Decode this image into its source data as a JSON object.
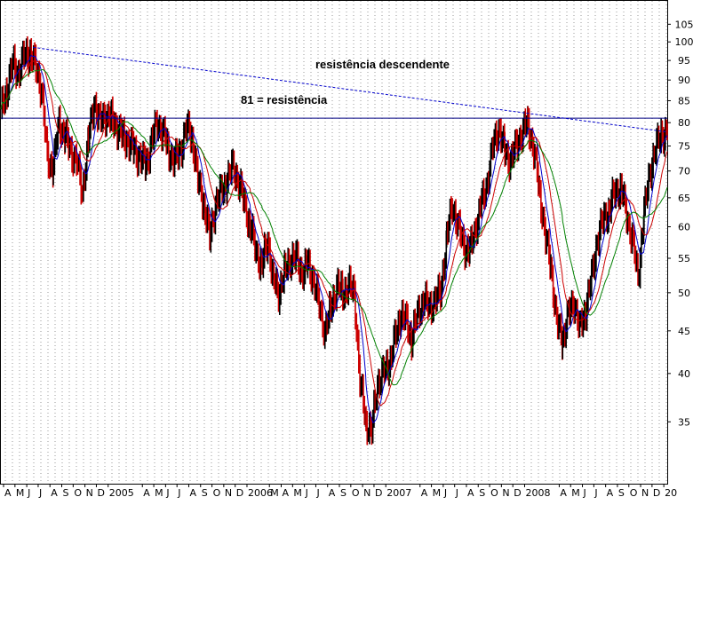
{
  "chart_data": {
    "type": "candlestick",
    "title": "",
    "xlabel": "",
    "ylabel": "",
    "y_scale": "log",
    "ylim": [
      29.5,
      112
    ],
    "y_ticks": [
      35,
      40,
      45,
      50,
      55,
      60,
      65,
      70,
      75,
      80,
      85,
      90,
      95,
      100,
      105
    ],
    "x_range": [
      "2004-03-25",
      "2009-01-10"
    ],
    "x_ticks": [
      {
        "label": "A",
        "date": "2004-04-01"
      },
      {
        "label": "M",
        "date": "2004-05-01"
      },
      {
        "label": "J",
        "date": "2004-06-01"
      },
      {
        "label": "J",
        "date": "2004-07-01"
      },
      {
        "label": "A",
        "date": "2004-08-01"
      },
      {
        "label": "S",
        "date": "2004-09-01"
      },
      {
        "label": "O",
        "date": "2004-10-01"
      },
      {
        "label": "N",
        "date": "2004-11-01"
      },
      {
        "label": "D",
        "date": "2004-12-01"
      },
      {
        "label": "2005",
        "date": "2005-01-01"
      },
      {
        "label": "A",
        "date": "2005-04-01"
      },
      {
        "label": "M",
        "date": "2005-05-01"
      },
      {
        "label": "J",
        "date": "2005-06-01"
      },
      {
        "label": "J",
        "date": "2005-07-01"
      },
      {
        "label": "A",
        "date": "2005-08-01"
      },
      {
        "label": "S",
        "date": "2005-09-01"
      },
      {
        "label": "O",
        "date": "2005-10-01"
      },
      {
        "label": "N",
        "date": "2005-11-01"
      },
      {
        "label": "D",
        "date": "2005-12-01"
      },
      {
        "label": "2006",
        "date": "2006-01-01"
      },
      {
        "label": "M",
        "date": "2006-03-01"
      },
      {
        "label": "A",
        "date": "2006-04-01"
      },
      {
        "label": "M",
        "date": "2006-05-01"
      },
      {
        "label": "J",
        "date": "2006-06-01"
      },
      {
        "label": "J",
        "date": "2006-07-01"
      },
      {
        "label": "A",
        "date": "2006-08-01"
      },
      {
        "label": "S",
        "date": "2006-09-01"
      },
      {
        "label": "O",
        "date": "2006-10-01"
      },
      {
        "label": "N",
        "date": "2006-11-01"
      },
      {
        "label": "D",
        "date": "2006-12-01"
      },
      {
        "label": "2007",
        "date": "2007-01-01"
      },
      {
        "label": "A",
        "date": "2007-04-01"
      },
      {
        "label": "M",
        "date": "2007-05-01"
      },
      {
        "label": "J",
        "date": "2007-06-01"
      },
      {
        "label": "J",
        "date": "2007-07-01"
      },
      {
        "label": "A",
        "date": "2007-08-01"
      },
      {
        "label": "S",
        "date": "2007-09-01"
      },
      {
        "label": "O",
        "date": "2007-10-01"
      },
      {
        "label": "N",
        "date": "2007-11-01"
      },
      {
        "label": "D",
        "date": "2007-12-01"
      },
      {
        "label": "2008",
        "date": "2008-01-01"
      },
      {
        "label": "A",
        "date": "2008-04-01"
      },
      {
        "label": "M",
        "date": "2008-05-01"
      },
      {
        "label": "J",
        "date": "2008-06-01"
      },
      {
        "label": "J",
        "date": "2008-07-01"
      },
      {
        "label": "A",
        "date": "2008-08-01"
      },
      {
        "label": "S",
        "date": "2008-09-01"
      },
      {
        "label": "O",
        "date": "2008-10-01"
      },
      {
        "label": "N",
        "date": "2008-11-01"
      },
      {
        "label": "D",
        "date": "2008-12-01"
      },
      {
        "label": "20",
        "date": "2009-01-01"
      }
    ],
    "price_path": [
      [
        "2004-03-25",
        82
      ],
      [
        "2004-04-10",
        88
      ],
      [
        "2004-04-25",
        94
      ],
      [
        "2004-05-10",
        92
      ],
      [
        "2004-05-25",
        96
      ],
      [
        "2004-06-10",
        97
      ],
      [
        "2004-06-25",
        93
      ],
      [
        "2004-07-10",
        88
      ],
      [
        "2004-07-25",
        72
      ],
      [
        "2004-08-10",
        71
      ],
      [
        "2004-08-25",
        80
      ],
      [
        "2004-09-10",
        77
      ],
      [
        "2004-09-25",
        74
      ],
      [
        "2004-10-10",
        72
      ],
      [
        "2004-10-25",
        66
      ],
      [
        "2004-11-10",
        76
      ],
      [
        "2004-11-25",
        85
      ],
      [
        "2004-12-10",
        80
      ],
      [
        "2004-12-25",
        82
      ],
      [
        "2005-01-10",
        81
      ],
      [
        "2005-01-25",
        79
      ],
      [
        "2005-02-10",
        77
      ],
      [
        "2005-02-25",
        76
      ],
      [
        "2005-03-10",
        74
      ],
      [
        "2005-03-25",
        73
      ],
      [
        "2005-04-10",
        71
      ],
      [
        "2005-04-25",
        76
      ],
      [
        "2005-05-10",
        80
      ],
      [
        "2005-05-25",
        78
      ],
      [
        "2005-06-10",
        74
      ],
      [
        "2005-06-25",
        72
      ],
      [
        "2005-07-10",
        74
      ],
      [
        "2005-07-25",
        79
      ],
      [
        "2005-08-10",
        77
      ],
      [
        "2005-08-25",
        68
      ],
      [
        "2005-09-10",
        64
      ],
      [
        "2005-09-25",
        58
      ],
      [
        "2005-10-10",
        64
      ],
      [
        "2005-10-25",
        66
      ],
      [
        "2005-11-10",
        68
      ],
      [
        "2005-11-25",
        71
      ],
      [
        "2005-12-10",
        68
      ],
      [
        "2005-12-25",
        64
      ],
      [
        "2006-01-10",
        60
      ],
      [
        "2006-01-25",
        56
      ],
      [
        "2006-02-10",
        54
      ],
      [
        "2006-02-25",
        58
      ],
      [
        "2006-03-10",
        52
      ],
      [
        "2006-03-25",
        50
      ],
      [
        "2006-04-10",
        53
      ],
      [
        "2006-04-25",
        55
      ],
      [
        "2006-05-10",
        55
      ],
      [
        "2006-05-25",
        53
      ],
      [
        "2006-06-10",
        54
      ],
      [
        "2006-06-25",
        52
      ],
      [
        "2006-07-10",
        48
      ],
      [
        "2006-07-25",
        45
      ],
      [
        "2006-08-10",
        48
      ],
      [
        "2006-08-25",
        51
      ],
      [
        "2006-09-10",
        50
      ],
      [
        "2006-09-25",
        51
      ],
      [
        "2006-10-10",
        50
      ],
      [
        "2006-10-25",
        39
      ],
      [
        "2006-11-10",
        35
      ],
      [
        "2006-11-25",
        34
      ],
      [
        "2006-12-10",
        39
      ],
      [
        "2006-12-25",
        40
      ],
      [
        "2007-01-10",
        41
      ],
      [
        "2007-01-25",
        44
      ],
      [
        "2007-02-10",
        47
      ],
      [
        "2007-02-25",
        46
      ],
      [
        "2007-03-10",
        44
      ],
      [
        "2007-03-25",
        47
      ],
      [
        "2007-04-10",
        49
      ],
      [
        "2007-04-25",
        48
      ],
      [
        "2007-05-10",
        49
      ],
      [
        "2007-05-25",
        50
      ],
      [
        "2007-06-10",
        58
      ],
      [
        "2007-06-25",
        64
      ],
      [
        "2007-07-10",
        60
      ],
      [
        "2007-07-25",
        57
      ],
      [
        "2007-08-10",
        56
      ],
      [
        "2007-08-25",
        60
      ],
      [
        "2007-09-10",
        64
      ],
      [
        "2007-09-25",
        68
      ],
      [
        "2007-10-10",
        75
      ],
      [
        "2007-10-25",
        79
      ],
      [
        "2007-11-10",
        74
      ],
      [
        "2007-11-25",
        72
      ],
      [
        "2007-12-10",
        75
      ],
      [
        "2007-12-25",
        78
      ],
      [
        "2008-01-10",
        80
      ],
      [
        "2008-01-25",
        74
      ],
      [
        "2008-02-10",
        66
      ],
      [
        "2008-02-25",
        58
      ],
      [
        "2008-03-10",
        54
      ],
      [
        "2008-03-25",
        46
      ],
      [
        "2008-04-10",
        44
      ],
      [
        "2008-04-25",
        47
      ],
      [
        "2008-05-10",
        49
      ],
      [
        "2008-05-25",
        45
      ],
      [
        "2008-06-10",
        48
      ],
      [
        "2008-06-25",
        52
      ],
      [
        "2008-07-10",
        58
      ],
      [
        "2008-07-25",
        61
      ],
      [
        "2008-08-10",
        63
      ],
      [
        "2008-08-25",
        66
      ],
      [
        "2008-09-10",
        67
      ],
      [
        "2008-09-25",
        62
      ],
      [
        "2008-10-10",
        58
      ],
      [
        "2008-10-25",
        52
      ],
      [
        "2008-11-10",
        62
      ],
      [
        "2008-11-25",
        70
      ],
      [
        "2008-12-10",
        74
      ],
      [
        "2008-12-25",
        78
      ],
      [
        "2009-01-05",
        77
      ],
      [
        "2009-01-10",
        78
      ]
    ],
    "series": [
      {
        "name": "",
        "type": "candles",
        "color": "#000000",
        "down_color": "#cc0000"
      },
      {
        "name": "",
        "type": "moving-average",
        "window_points": 2,
        "color": "#0000cc"
      },
      {
        "name": "",
        "type": "moving-average",
        "window_points": 4,
        "color": "#cc0000"
      },
      {
        "name": "",
        "type": "moving-average",
        "window_points": 7,
        "color": "#008000"
      }
    ],
    "reference_lines": [
      {
        "kind": "horizontal",
        "value": 81,
        "color": "#000080",
        "label": "81 = resistência"
      },
      {
        "kind": "trendline",
        "color": "#0000cc",
        "style": "dashed",
        "from": [
          "2004-06-18",
          98.5
        ],
        "to": [
          "2009-01-08",
          78
        ],
        "label": "resistência descendente"
      }
    ],
    "grid": true,
    "legend": "none"
  }
}
